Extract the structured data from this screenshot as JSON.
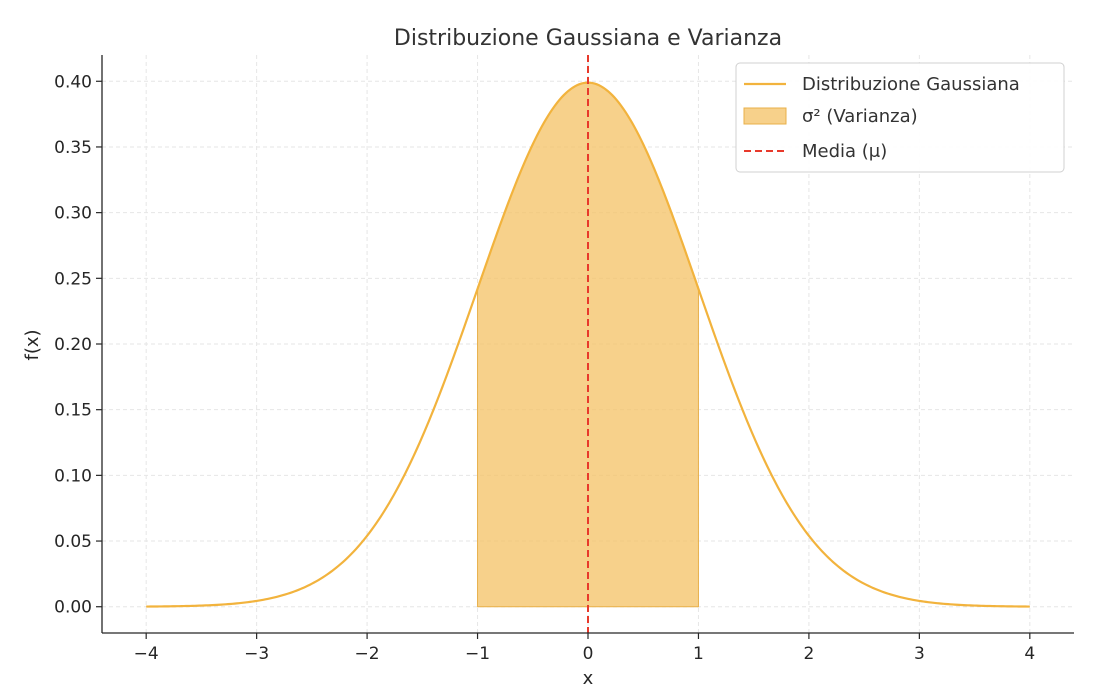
{
  "chart_data": {
    "type": "line",
    "title": "Distribuzione Gaussiana e Varianza",
    "xlabel": "x",
    "ylabel": "f(x)",
    "xlim": [
      -4.4,
      4.4
    ],
    "ylim": [
      -0.02,
      0.42
    ],
    "xticks": [
      -4,
      -3,
      -2,
      -1,
      0,
      1,
      2,
      3,
      4
    ],
    "xtick_labels": [
      "−4",
      "−3",
      "−2",
      "−1",
      "0",
      "1",
      "2",
      "3",
      "4"
    ],
    "yticks": [
      0.0,
      0.05,
      0.1,
      0.15,
      0.2,
      0.25,
      0.3,
      0.35,
      0.4
    ],
    "ytick_labels": [
      "0.00",
      "0.05",
      "0.10",
      "0.15",
      "0.20",
      "0.25",
      "0.30",
      "0.35",
      "0.40"
    ],
    "grid": true,
    "legend_position": "top-right",
    "series": [
      {
        "name": "Distribuzione Gaussiana",
        "kind": "line",
        "color": "#F2B33D",
        "x": [
          -4,
          -3.5,
          -3,
          -2.5,
          -2,
          -1.5,
          -1,
          -0.5,
          0,
          0.5,
          1,
          1.5,
          2,
          2.5,
          3,
          3.5,
          4
        ],
        "y": [
          0.0001,
          0.0009,
          0.0044,
          0.0175,
          0.054,
          0.1295,
          0.242,
          0.3521,
          0.3989,
          0.3521,
          0.242,
          0.1295,
          0.054,
          0.0175,
          0.0044,
          0.0009,
          0.0001
        ]
      },
      {
        "name": "σ² (Varianza)",
        "kind": "area",
        "color": "#F5C56E",
        "x_range": [
          -1,
          1
        ]
      },
      {
        "name": "Media (μ)",
        "kind": "vline",
        "color": "#E8392B",
        "x": 0
      }
    ]
  }
}
